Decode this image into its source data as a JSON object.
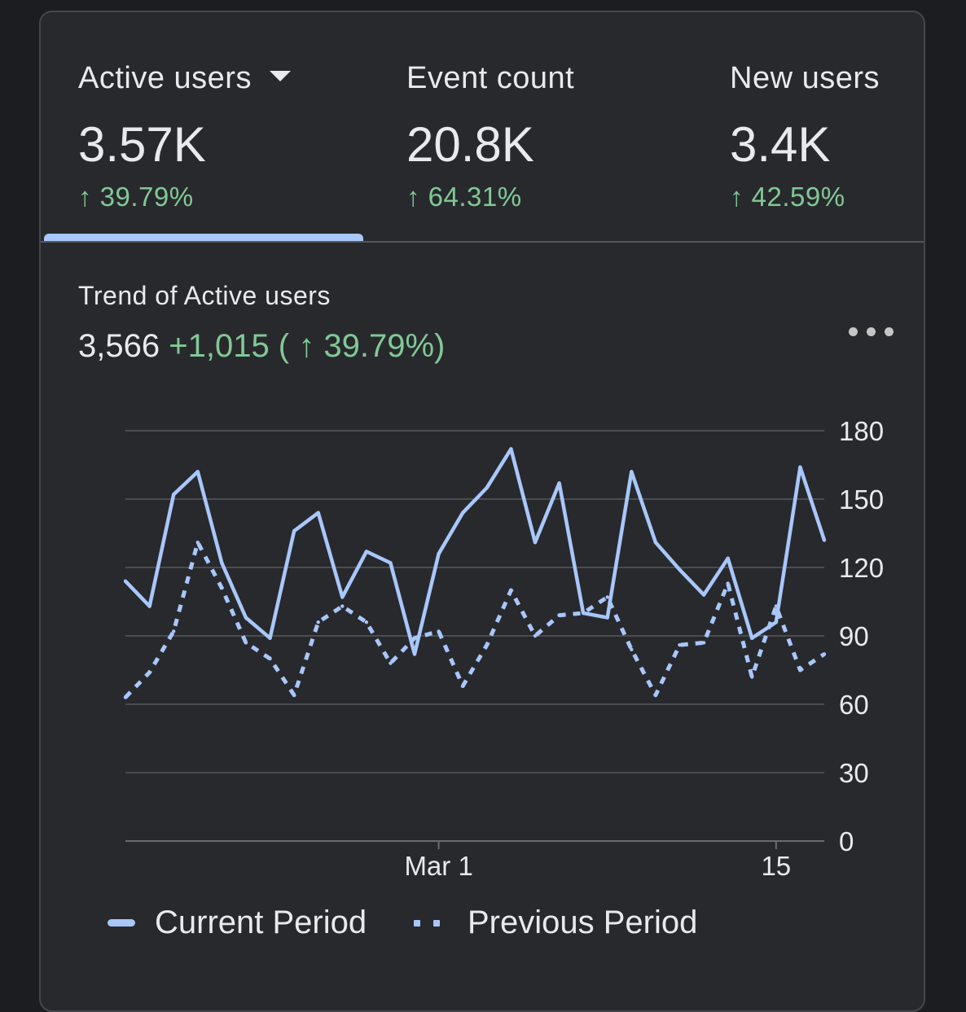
{
  "metrics": [
    {
      "label": "Active users",
      "value": "3.57K",
      "delta": "↑ 39.79%",
      "selected": true,
      "has_dropdown": true
    },
    {
      "label": "Event count",
      "value": "20.8K",
      "delta": "↑ 64.31%",
      "selected": false,
      "has_dropdown": false
    },
    {
      "label": "New users",
      "value": "3.4K",
      "delta": "↑ 42.59%",
      "selected": false,
      "has_dropdown": false
    }
  ],
  "chart_header": {
    "title": "Trend of Active users",
    "total": "3,566",
    "change": "+1,015 ( ↑ 39.79%)"
  },
  "icons": {
    "more": "more-horizontal-icon",
    "dropdown": "caret-down-icon"
  },
  "colors": {
    "background": "#1c1d20",
    "card": "#28292d",
    "accent": "#a8c7fa",
    "positive": "#81c995",
    "text": "#e8eaed"
  },
  "chart_data": {
    "type": "line",
    "title": "Trend of Active users",
    "xlabel": "",
    "ylabel": "",
    "ylim": [
      0,
      180
    ],
    "y_ticks": [
      "180",
      "150",
      "120",
      "90",
      "60",
      "30",
      "0"
    ],
    "x_tick_labels": [
      {
        "label": "Mar 1",
        "index": 13
      },
      {
        "label": "15",
        "index": 27
      }
    ],
    "grid": true,
    "legend_position": "bottom-left",
    "series": [
      {
        "name": "Current Period",
        "style": "solid",
        "values": [
          114,
          103,
          152,
          162,
          122,
          98,
          89,
          136,
          144,
          107,
          127,
          122,
          82,
          126,
          144,
          155,
          172,
          131,
          157,
          100,
          98,
          162,
          131,
          119,
          108,
          124,
          89,
          96,
          164,
          132
        ]
      },
      {
        "name": "Previous Period",
        "style": "dotted",
        "values": [
          63,
          74,
          92,
          131,
          111,
          87,
          80,
          64,
          96,
          103,
          96,
          78,
          89,
          92,
          68,
          86,
          110,
          90,
          99,
          100,
          107,
          84,
          64,
          86,
          87,
          113,
          72,
          103,
          75,
          82
        ]
      }
    ]
  }
}
